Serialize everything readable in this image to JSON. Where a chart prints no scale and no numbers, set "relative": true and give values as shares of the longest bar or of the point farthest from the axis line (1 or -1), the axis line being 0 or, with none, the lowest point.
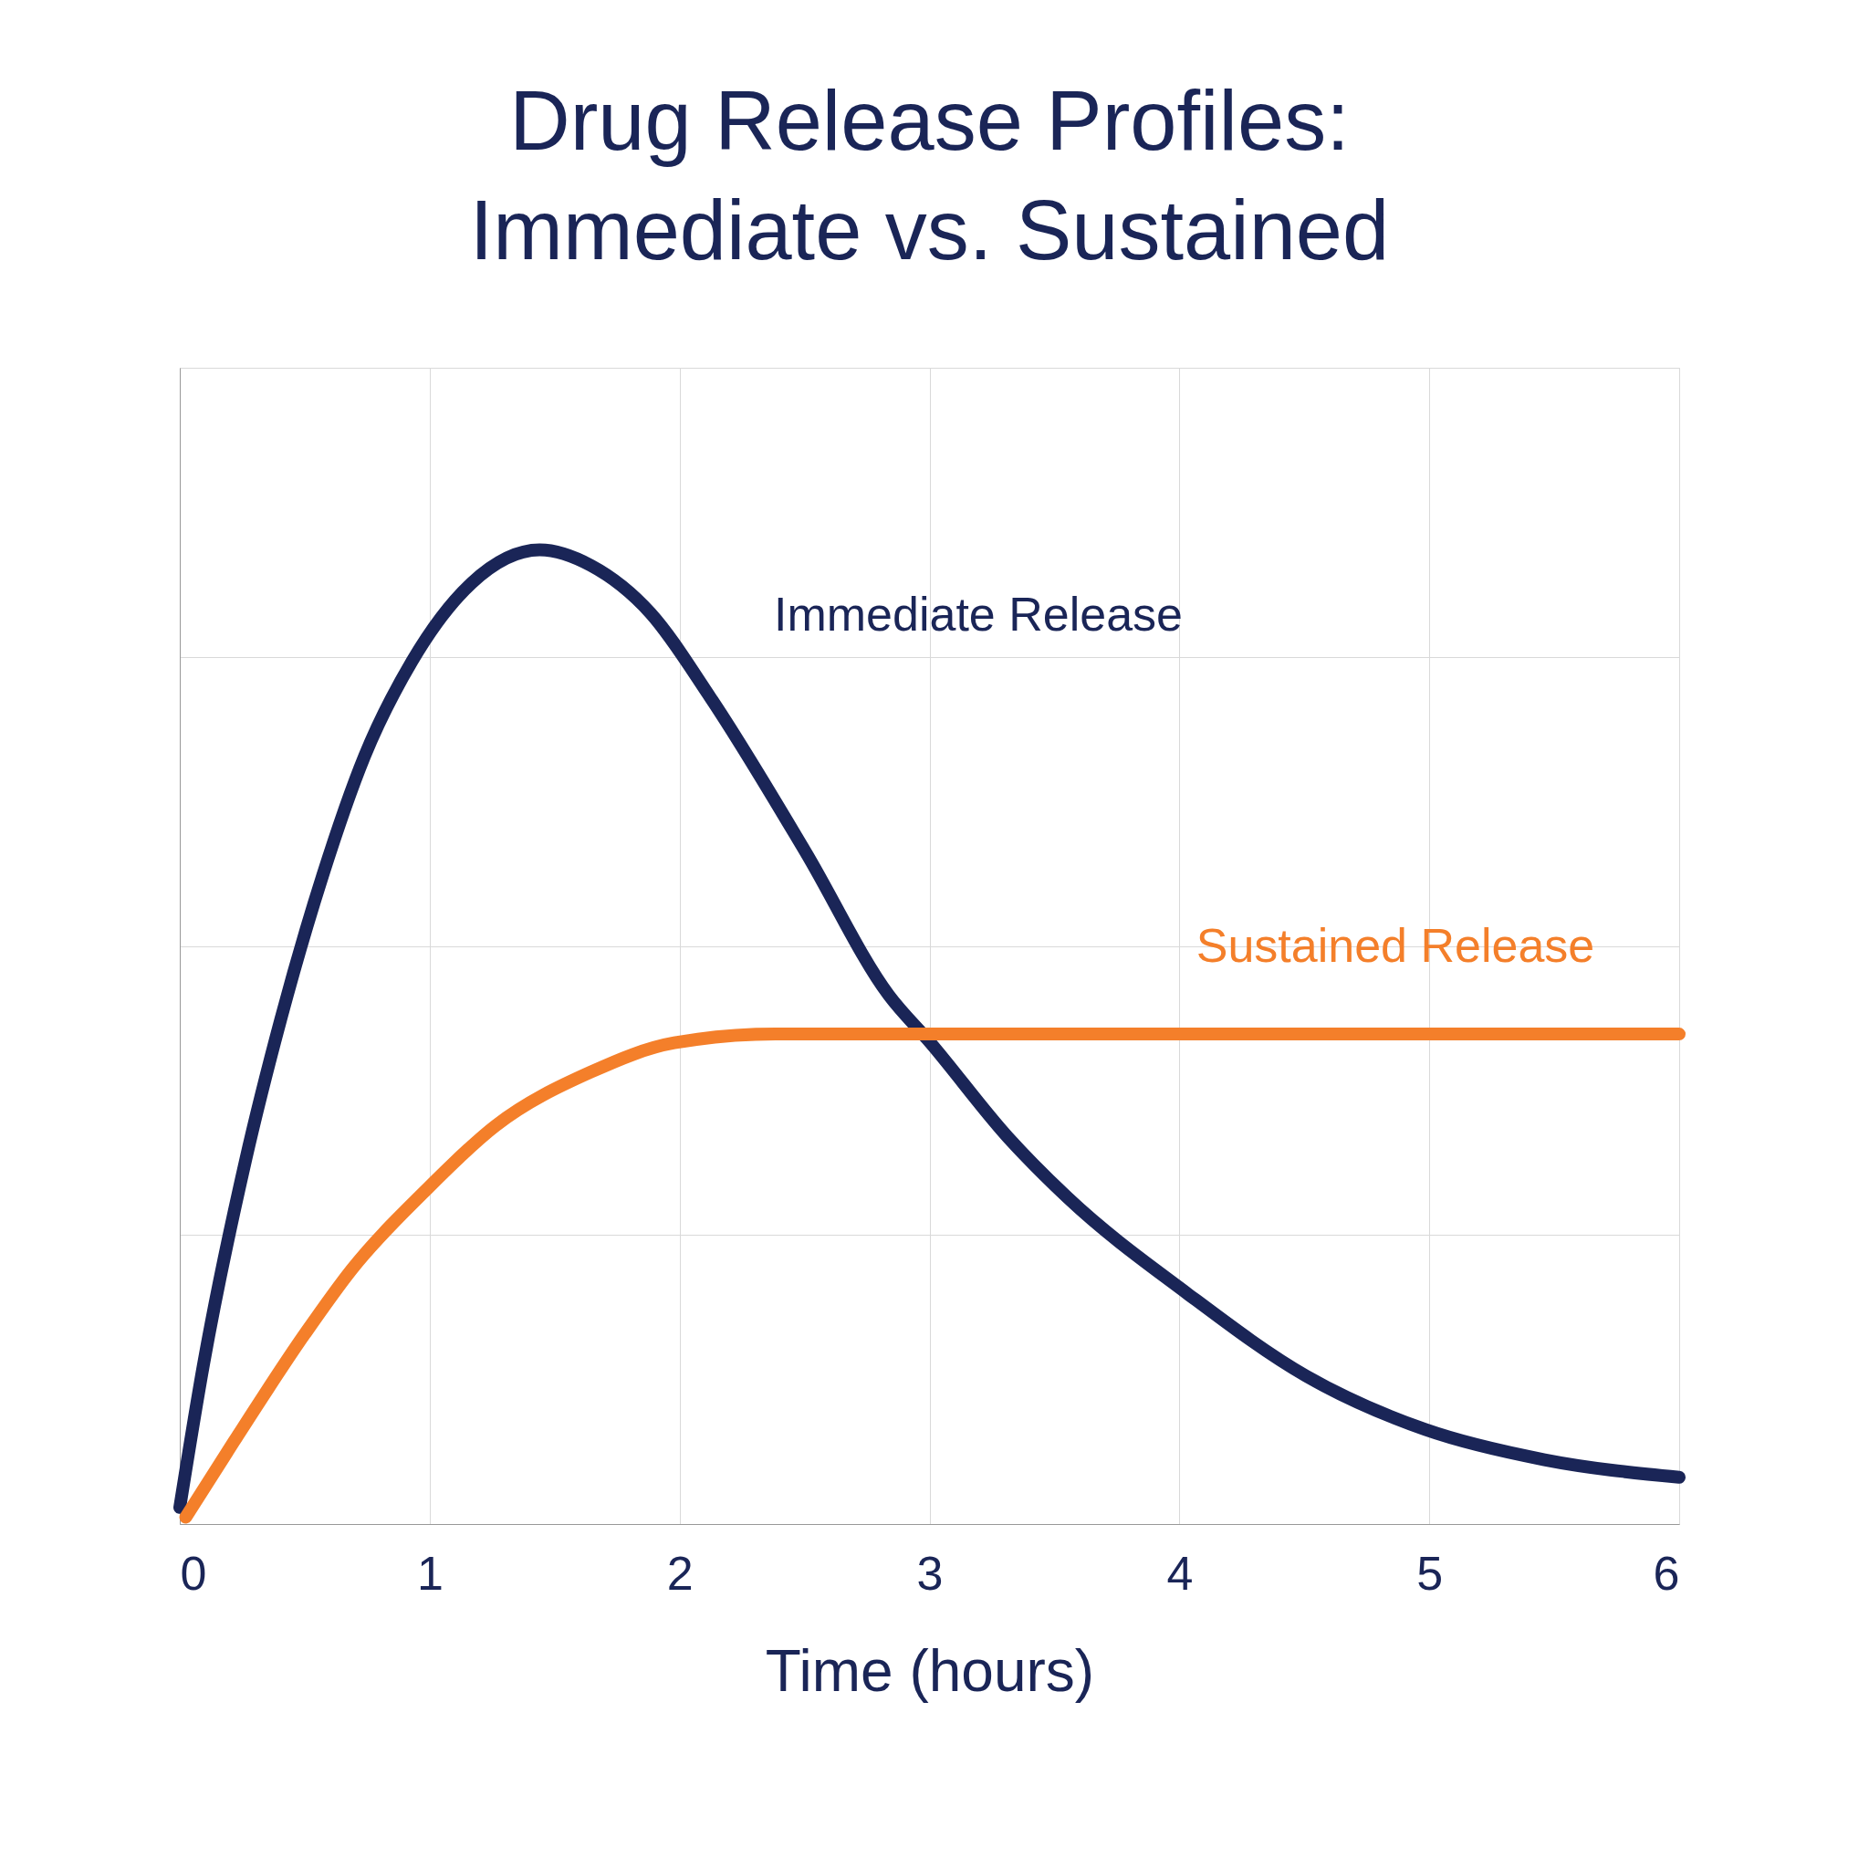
{
  "chart_data": {
    "type": "line",
    "title": "Drug Release Profiles:\nImmediate vs. Sustained",
    "xlabel": "Time (hours)",
    "relative": true,
    "xlim": [
      0,
      6
    ],
    "xticks": [
      0,
      1,
      2,
      3,
      4,
      5,
      6
    ],
    "tick_labels": "x",
    "grid": true,
    "legend": false,
    "line_style": "solid",
    "series": [
      {
        "name": "Immediate Release",
        "color": "#1a2557",
        "x": [
          0,
          0.095,
          0.262,
          0.405,
          0.572,
          0.739,
          0.93,
          1.168,
          1.44,
          1.645,
          1.884,
          2.122,
          2.504,
          2.837,
          3.004,
          3.314,
          3.553,
          4.03,
          4.507,
          4.984,
          5.461,
          6
        ],
        "values": [
          0.017,
          0.164,
          0.372,
          0.519,
          0.666,
          0.788,
          0.886,
          0.966,
          1.0,
          0.984,
          0.935,
          0.849,
          0.69,
          0.543,
          0.494,
          0.397,
          0.335,
          0.237,
          0.152,
          0.097,
          0.066,
          0.048
        ]
      },
      {
        "name": "Sustained Release",
        "color": "#f47f2a",
        "x": [
          0.024,
          0.215,
          0.5,
          0.69,
          0.978,
          1.264,
          1.645,
          1.979,
          2.384,
          6
        ],
        "values": [
          0.007,
          0.084,
          0.195,
          0.262,
          0.341,
          0.409,
          0.464,
          0.494,
          0.503,
          0.503
        ]
      }
    ]
  }
}
